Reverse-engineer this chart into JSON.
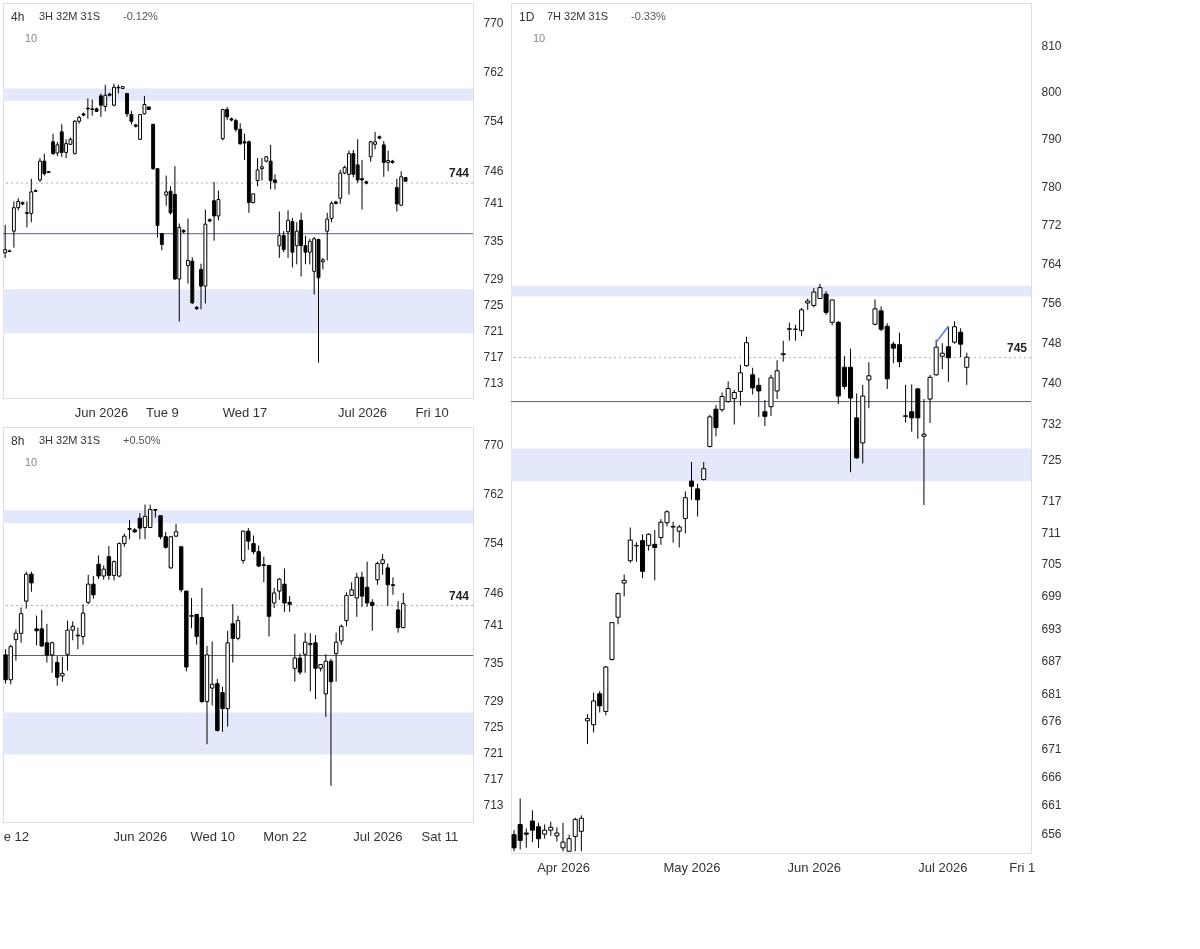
{
  "chart_data": [
    {
      "type": "candlestick",
      "title": "4h",
      "subtitle": "3H 32M 31S",
      "annotations": [
        "-0.12%",
        "10"
      ],
      "log": true,
      "grid": false,
      "categories": [
        null,
        null,
        null,
        null,
        null,
        null,
        null,
        null,
        null,
        null,
        null,
        null,
        null,
        null,
        null,
        null,
        null,
        null,
        null,
        null,
        null,
        null,
        "Jun 2026",
        null,
        null,
        null,
        null,
        null,
        null,
        null,
        null,
        null,
        null,
        null,
        null,
        null,
        "Tue 9",
        null,
        null,
        null,
        null,
        null,
        null,
        null,
        null,
        null,
        null,
        null,
        null,
        null,
        null,
        null,
        null,
        null,
        null,
        "Wed 17",
        null,
        null,
        null,
        null,
        null,
        null,
        null,
        null,
        null,
        null,
        null,
        null,
        null,
        null,
        null,
        null,
        null,
        null,
        null,
        null,
        null,
        null,
        null,
        null,
        null,
        null,
        "Jul 2026",
        null,
        null,
        null,
        null,
        null,
        null,
        null,
        null,
        null,
        null,
        null,
        null,
        null,
        null,
        null,
        "Fri 10",
        null,
        null,
        null,
        null,
        null,
        null,
        null,
        null,
        null
      ],
      "ylim": [
        710.6,
        773.2
      ],
      "yticks": [
        713,
        717,
        721,
        725,
        729,
        735,
        741,
        746,
        754,
        762,
        770
      ],
      "bands": [
        {
          "axis": "y",
          "from": 757.2,
          "to": 759.2,
          "color": "#e3e9fb"
        },
        {
          "axis": "y",
          "from": 720.5,
          "to": 727.3,
          "color": "#e3e9fb"
        }
      ],
      "ref_lines": [
        {
          "axis": "y",
          "value": 744,
          "label": "744",
          "color": "#b0b0b0",
          "line_style": "dotted"
        },
        {
          "axis": "y",
          "value": 736.0,
          "color": "#3d5fc4",
          "line_style": "solid"
        }
      ],
      "ohlc": [
        [
          733.0,
          737.4,
          732.2,
          733.5
        ],
        [
          733.3,
          733.5,
          733.1,
          733.2
        ],
        [
          736.4,
          741.1,
          733.8,
          740.1
        ],
        [
          740.1,
          741.6,
          739.7,
          741.1
        ],
        [
          740.9,
          741.1,
          740.5,
          740.7
        ],
        [
          739.3,
          741.1,
          737.0,
          739.2
        ],
        [
          739.2,
          744.7,
          737.8,
          742.6
        ],
        [
          742.8,
          743.0,
          742.6,
          742.7
        ],
        [
          744.5,
          748.0,
          744.2,
          747.5
        ],
        [
          747.5,
          748.7,
          745.2,
          745.5
        ],
        [
          745.8,
          745.9,
          745.6,
          745.7
        ],
        [
          750.6,
          751.9,
          748.5,
          748.7
        ],
        [
          748.8,
          750.6,
          748.3,
          750.1
        ],
        [
          752.2,
          753.4,
          748.2,
          748.9
        ],
        [
          748.9,
          751.0,
          748.0,
          750.3
        ],
        [
          750.2,
          751.3,
          750.1,
          751.0
        ],
        [
          748.7,
          754.1,
          748.6,
          753.9
        ],
        [
          753.9,
          754.8,
          753.5,
          754.5
        ],
        [
          755.1,
          755.3,
          754.7,
          754.9
        ],
        [
          756.0,
          757.6,
          754.3,
          755.9
        ],
        [
          755.9,
          757.4,
          754.8,
          755.8
        ],
        [
          755.9,
          756.1,
          755.4,
          755.5
        ],
        [
          758.0,
          758.4,
          754.6,
          756.5
        ],
        [
          756.3,
          759.8,
          755.5,
          758.1
        ],
        [
          758.3,
          758.5,
          757.9,
          758.1
        ],
        [
          756.5,
          760.0,
          756.3,
          759.4
        ],
        [
          759.3,
          759.8,
          758.4,
          759.4
        ],
        [
          759.2,
          759.6,
          759.1,
          759.5
        ],
        [
          758.4,
          758.4,
          754.6,
          755.1
        ],
        [
          755.0,
          755.6,
          753.4,
          753.9
        ],
        [
          753.3,
          753.5,
          752.9,
          753.1
        ],
        [
          751.0,
          755.0,
          750.9,
          755.0
        ],
        [
          755.1,
          758.0,
          755.0,
          756.6
        ],
        [
          756.2,
          756.3,
          755.7,
          755.8
        ],
        [
          753.4,
          753.5,
          746.1,
          746.3
        ],
        [
          746.3,
          746.3,
          735.4,
          737.3
        ],
        [
          736.0,
          736.0,
          733.4,
          734.3
        ],
        [
          742.1,
          745.2,
          740.4,
          742.6
        ],
        [
          742.7,
          743.5,
          739.0,
          739.3
        ],
        [
          742.2,
          746.7,
          728.8,
          728.9
        ],
        [
          728.9,
          737.6,
          722.3,
          737.0
        ],
        [
          736.5,
          736.7,
          736.1,
          736.3
        ],
        [
          731.0,
          738.4,
          728.2,
          731.8
        ],
        [
          731.7,
          732.3,
          725.0,
          725.2
        ],
        [
          724.5,
          724.7,
          724.1,
          724.3
        ],
        [
          730.4,
          731.3,
          724.2,
          727.8
        ],
        [
          727.8,
          739.8,
          725.1,
          737.5
        ],
        [
          738.2,
          738.4,
          737.8,
          738.0
        ],
        [
          741.2,
          744.2,
          734.9,
          738.8
        ],
        [
          738.8,
          742.8,
          738.1,
          741.4
        ],
        [
          751.1,
          755.9,
          750.8,
          755.8
        ],
        [
          755.8,
          756.2,
          754.1,
          754.6
        ],
        [
          754.3,
          754.5,
          753.9,
          754.1
        ],
        [
          754.0,
          754.3,
          752.2,
          752.6
        ],
        [
          752.6,
          753.6,
          750.1,
          750.3
        ],
        [
          750.6,
          751.9,
          747.7,
          750.4
        ],
        [
          750.6,
          750.8,
          739.3,
          740.9
        ],
        [
          740.9,
          742.3,
          740.8,
          742.3
        ],
        [
          744.4,
          748.0,
          743.5,
          746.1
        ],
        [
          746.3,
          748.0,
          744.4,
          746.6
        ],
        [
          747.5,
          748.3,
          747.3,
          748.2
        ],
        [
          747.5,
          750.1,
          743.0,
          744.4
        ],
        [
          744.5,
          745.4,
          743.0,
          744.1
        ],
        [
          734.1,
          739.5,
          732.2,
          735.7
        ],
        [
          735.7,
          736.4,
          733.1,
          733.5
        ],
        [
          736.3,
          739.7,
          732.2,
          738.1
        ],
        [
          737.9,
          738.5,
          730.7,
          733.1
        ],
        [
          734.1,
          737.8,
          731.2,
          736.4
        ],
        [
          738.1,
          739.3,
          729.3,
          734.1
        ],
        [
          734.1,
          735.7,
          731.2,
          733.1
        ],
        [
          733.1,
          735.2,
          731.2,
          734.8
        ],
        [
          730.1,
          735.5,
          726.5,
          735.2
        ],
        [
          735.1,
          735.2,
          716.0,
          729.1
        ],
        [
          731.6,
          732.2,
          730.4,
          731.9
        ],
        [
          736.4,
          739.3,
          731.8,
          738.3
        ],
        [
          738.4,
          741.1,
          737.8,
          740.8
        ],
        [
          741.0,
          741.2,
          740.6,
          740.8
        ],
        [
          741.6,
          746.1,
          740.7,
          745.6
        ],
        [
          745.6,
          746.8,
          745.4,
          746.5
        ],
        [
          745.4,
          749.2,
          742.2,
          748.7
        ],
        [
          748.7,
          749.3,
          744.9,
          745.4
        ],
        [
          746.9,
          751.0,
          744.0,
          744.5
        ],
        [
          744.7,
          747.7,
          739.8,
          744.5
        ],
        [
          744.2,
          744.4,
          743.8,
          744.0
        ],
        [
          748.2,
          750.8,
          747.4,
          750.6
        ],
        [
          750.2,
          752.2,
          749.4,
          750.6
        ],
        [
          751.4,
          751.6,
          751.0,
          751.2
        ],
        [
          750.1,
          750.7,
          745.0,
          747.3
        ],
        [
          747.3,
          749.2,
          745.9,
          747.6
        ],
        [
          747.5,
          747.7,
          747.1,
          747.3
        ],
        [
          743.3,
          744.7,
          739.5,
          740.7
        ],
        [
          740.5,
          745.9,
          740.4,
          745.0
        ],
        [
          744.9,
          744.9,
          744.3,
          744.3
        ],
        null,
        null,
        null,
        null,
        null,
        null,
        null,
        null,
        null,
        null,
        null,
        null,
        null,
        null,
        null
      ]
    },
    {
      "type": "candlestick",
      "title": "8h",
      "subtitle": "3H 32M 31S",
      "annotations": [
        "+0.50%",
        "10"
      ],
      "log": true,
      "grid": false,
      "categories": [
        null,
        null,
        "e 12",
        null,
        null,
        null,
        null,
        null,
        null,
        null,
        null,
        null,
        null,
        null,
        null,
        null,
        null,
        null,
        null,
        null,
        null,
        null,
        null,
        null,
        null,
        null,
        "Jun 2026",
        null,
        null,
        null,
        null,
        null,
        null,
        null,
        null,
        null,
        null,
        null,
        null,
        null,
        "Wed 10",
        null,
        null,
        null,
        null,
        null,
        null,
        null,
        null,
        null,
        null,
        null,
        null,
        null,
        "Mon 22",
        null,
        null,
        null,
        null,
        null,
        null,
        null,
        null,
        null,
        null,
        null,
        null,
        null,
        null,
        null,
        null,
        null,
        "Jul 2026",
        null,
        null,
        null,
        null,
        null,
        null,
        null,
        null,
        null,
        null,
        null,
        "Sat 11",
        null,
        null,
        null,
        null,
        null,
        null
      ],
      "ylim": [
        710.4,
        772.9
      ],
      "yticks": [
        713,
        717,
        721,
        725,
        729,
        735,
        741,
        746,
        754,
        762,
        770
      ],
      "bands": [
        {
          "axis": "y",
          "from": 757.2,
          "to": 759.3,
          "color": "#e3e9fb"
        },
        {
          "axis": "y",
          "from": 720.7,
          "to": 727.2,
          "color": "#e3e9fb"
        }
      ],
      "ref_lines": [
        {
          "axis": "y",
          "value": 744,
          "label": "744",
          "color": "#b0b0b0",
          "line_style": "dotted"
        },
        {
          "axis": "y",
          "value": 736.1,
          "color": "#3d5fc4",
          "line_style": "solid"
        }
      ],
      "ohlc": [
        [
          736.2,
          737.1,
          731.7,
          732.3
        ],
        [
          732.3,
          737.8,
          731.6,
          737.5
        ],
        [
          738.6,
          740.2,
          735.3,
          739.6
        ],
        [
          739.6,
          743.7,
          738.1,
          742.7
        ],
        [
          744.7,
          749.4,
          743.5,
          749.0
        ],
        [
          749.0,
          749.4,
          746.2,
          747.6
        ],
        [
          740.3,
          742.4,
          737.7,
          740.0
        ],
        [
          740.3,
          743.3,
          737.5,
          737.6
        ],
        [
          738.1,
          741.1,
          735.0,
          736.2
        ],
        [
          736.2,
          738.3,
          733.4,
          738.1
        ],
        [
          735.0,
          736.0,
          731.4,
          732.7
        ],
        [
          732.9,
          735.9,
          732.0,
          733.3
        ],
        [
          736.3,
          741.6,
          733.7,
          740.1
        ],
        [
          740.1,
          741.5,
          738.5,
          740.7
        ],
        [
          739.3,
          740.5,
          737.1,
          739.2
        ],
        [
          739.1,
          744.2,
          737.8,
          742.8
        ],
        [
          744.5,
          748.9,
          744.2,
          747.4
        ],
        [
          747.4,
          748.7,
          745.1,
          745.7
        ],
        [
          750.6,
          752.0,
          748.2,
          748.7
        ],
        [
          748.7,
          750.4,
          748.1,
          749.8
        ],
        [
          751.8,
          753.5,
          748.1,
          748.8
        ],
        [
          748.8,
          751.2,
          748.0,
          751.0
        ],
        [
          748.7,
          754.1,
          748.5,
          753.9
        ],
        [
          753.9,
          755.5,
          753.4,
          755.1
        ],
        [
          756.3,
          757.7,
          754.6,
          756.2
        ],
        [
          756.1,
          756.4,
          755.6,
          755.8
        ],
        [
          758.0,
          758.8,
          754.6,
          756.4
        ],
        [
          756.5,
          760.2,
          754.6,
          758.3
        ],
        [
          756.5,
          760.2,
          756.4,
          759.4
        ],
        [
          759.4,
          759.5,
          758.1,
          759.3
        ],
        [
          758.4,
          758.4,
          754.6,
          755.0
        ],
        [
          755.0,
          755.8,
          753.1,
          753.3
        ],
        [
          750.0,
          755.1,
          749.9,
          755.0
        ],
        [
          755.1,
          757.1,
          755.0,
          755.8
        ],
        [
          753.4,
          753.4,
          746.1,
          746.5
        ],
        [
          746.3,
          746.3,
          733.6,
          734.3
        ],
        [
          742.4,
          745.2,
          740.4,
          742.3
        ],
        [
          742.6,
          742.6,
          737.8,
          739.1
        ],
        [
          742.1,
          746.8,
          728.7,
          728.9
        ],
        [
          728.9,
          737.6,
          722.3,
          736.2
        ],
        [
          731.0,
          738.3,
          728.3,
          731.6
        ],
        [
          731.7,
          732.4,
          724.3,
          724.4
        ],
        [
          730.3,
          731.2,
          724.2,
          727.8
        ],
        [
          727.8,
          740.0,
          725.0,
          738.1
        ],
        [
          741.1,
          744.2,
          735.0,
          738.8
        ],
        [
          738.8,
          742.4,
          738.5,
          741.6
        ],
        [
          751.2,
          756.0,
          750.7,
          755.9
        ],
        [
          755.9,
          756.4,
          752.9,
          754.3
        ],
        [
          753.9,
          755.2,
          752.2,
          752.6
        ],
        [
          752.6,
          753.6,
          750.1,
          750.3
        ],
        [
          750.5,
          751.8,
          747.7,
          750.4
        ],
        [
          750.4,
          750.4,
          739.1,
          742.3
        ],
        [
          744.4,
          746.8,
          743.6,
          746.0
        ],
        [
          746.3,
          748.4,
          744.9,
          748.2
        ],
        [
          747.4,
          749.9,
          743.0,
          744.4
        ],
        [
          744.5,
          745.5,
          743.0,
          744.2
        ],
        [
          734.1,
          739.5,
          732.0,
          735.7
        ],
        [
          735.7,
          736.4,
          733.1,
          733.5
        ],
        [
          736.3,
          739.7,
          733.4,
          738.2
        ],
        [
          737.8,
          739.6,
          730.5,
          738.0
        ],
        [
          738.1,
          739.3,
          729.3,
          734.1
        ],
        [
          734.1,
          734.7,
          733.6,
          734.7
        ],
        [
          730.1,
          736.3,
          726.5,
          735.2
        ],
        [
          735.2,
          735.6,
          715.9,
          732.0
        ],
        [
          736.4,
          739.7,
          732.0,
          738.2
        ],
        [
          738.4,
          741.0,
          737.8,
          740.7
        ],
        [
          741.6,
          746.1,
          740.7,
          745.6
        ],
        [
          745.6,
          747.7,
          745.6,
          746.5
        ],
        [
          745.2,
          749.2,
          742.2,
          748.5
        ],
        [
          748.5,
          749.4,
          743.8,
          745.5
        ],
        [
          746.9,
          751.0,
          743.8,
          744.4
        ],
        [
          744.5,
          745.0,
          740.0,
          744.0
        ],
        [
          748.1,
          751.0,
          747.3,
          750.7
        ],
        [
          750.7,
          752.2,
          748.9,
          751.3
        ],
        [
          750.0,
          750.7,
          743.9,
          747.3
        ],
        [
          747.3,
          748.5,
          745.7,
          747.2
        ],
        [
          743.3,
          744.7,
          739.7,
          740.5
        ],
        [
          740.5,
          746.0,
          740.4,
          744.3
        ],
        null,
        null,
        null,
        null,
        null,
        null,
        null,
        null,
        null,
        null,
        null,
        null,
        null
      ]
    },
    {
      "type": "candlestick",
      "title": "1D",
      "subtitle": "7H 32M 31S",
      "annotations": [
        "-0.33%",
        "10"
      ],
      "log": true,
      "grid": false,
      "categories": [
        null,
        null,
        null,
        null,
        null,
        null,
        null,
        null,
        "Apr 2026",
        null,
        null,
        null,
        null,
        null,
        null,
        null,
        null,
        null,
        null,
        null,
        null,
        null,
        null,
        null,
        null,
        null,
        null,
        null,
        null,
        "May 2026",
        null,
        null,
        null,
        null,
        null,
        null,
        null,
        null,
        null,
        null,
        null,
        null,
        null,
        null,
        null,
        null,
        null,
        null,
        null,
        "Jun 2026",
        null,
        null,
        null,
        null,
        null,
        null,
        null,
        null,
        null,
        null,
        null,
        null,
        null,
        null,
        null,
        null,
        null,
        null,
        null,
        null,
        "Jul 2026",
        null,
        null,
        null,
        null,
        null,
        null,
        null,
        null,
        null,
        null,
        null,
        null,
        "Fri 1",
        null
      ],
      "ylim": [
        652.5,
        819.2
      ],
      "yticks": [
        656,
        661,
        666,
        671,
        676,
        681,
        687,
        693,
        699,
        705,
        711,
        717,
        725,
        732,
        740,
        748,
        756,
        764,
        772,
        780,
        790,
        800,
        810
      ],
      "bands": [
        {
          "axis": "y",
          "from": 757.3,
          "to": 759.5,
          "color": "#e3e9fb"
        },
        {
          "axis": "y",
          "from": 720.8,
          "to": 727.1,
          "color": "#e3e9fb"
        }
      ],
      "ref_lines": [
        {
          "axis": "y",
          "value": 745,
          "label": "745",
          "color": "#b0b0b0",
          "line_style": "dotted"
        },
        {
          "axis": "y",
          "value": 736.3,
          "color": "#3d5fc4",
          "line_style": "solid"
        }
      ],
      "series": [
        {
          "type": "line",
          "color": "#5b7fe0",
          "values": [
            null,
            null,
            null,
            null,
            null,
            null,
            null,
            null,
            null,
            null,
            null,
            null,
            null,
            null,
            null,
            null,
            null,
            null,
            null,
            null,
            null,
            null,
            null,
            null,
            null,
            null,
            null,
            null,
            null,
            null,
            null,
            null,
            null,
            null,
            null,
            null,
            null,
            null,
            null,
            null,
            null,
            null,
            null,
            null,
            null,
            null,
            null,
            null,
            null,
            null,
            null,
            null,
            null,
            null,
            null,
            null,
            null,
            null,
            null,
            null,
            null,
            null,
            null,
            null,
            null,
            null,
            null,
            null,
            null,
            748.1,
            749.7,
            751.3,
            null,
            null,
            null,
            null,
            null,
            null,
            null,
            null,
            null,
            null,
            null,
            null,
            null
          ]
        }
      ],
      "ohlc": [
        [
          655.7,
          656.5,
          652.8,
          653.4
        ],
        [
          657.5,
          662.1,
          653.1,
          654.7
        ],
        [
          656.0,
          656.8,
          653.4,
          655.8
        ],
        [
          658.1,
          660.0,
          654.4,
          656.5
        ],
        [
          657.1,
          657.8,
          653.4,
          655.0
        ],
        [
          655.8,
          657.5,
          655.0,
          656.5
        ],
        [
          656.5,
          658.0,
          655.5,
          657.0
        ],
        [
          655.5,
          657.0,
          654.5,
          656.0
        ],
        [
          653.4,
          657.8,
          652.8,
          654.4
        ],
        [
          652.8,
          655.7,
          652.8,
          655.0
        ],
        [
          655.4,
          658.7,
          652.8,
          658.4
        ],
        [
          656.3,
          659.1,
          652.8,
          658.6
        ],
        [
          676.0,
          677.2,
          671.8,
          676.4
        ],
        [
          675.3,
          681.1,
          673.9,
          679.6
        ],
        [
          680.9,
          681.4,
          677.5,
          678.7
        ],
        [
          677.7,
          686.0,
          677.0,
          685.8
        ],
        [
          687.2,
          694.0,
          687.0,
          694.0
        ],
        [
          695.0,
          699.6,
          693.7,
          699.4
        ],
        [
          701.4,
          703.0,
          698.9,
          701.9
        ],
        [
          705.6,
          711.9,
          705.2,
          709.5
        ],
        [
          708.4,
          709.1,
          705.4,
          708.5
        ],
        [
          709.4,
          710.6,
          702.3,
          703.6
        ],
        [
          708.5,
          710.8,
          707.5,
          710.6
        ],
        [
          708.7,
          711.4,
          701.9,
          708.1
        ],
        [
          710.0,
          713.5,
          708.6,
          712.9
        ],
        [
          712.8,
          715.2,
          712.1,
          714.9
        ],
        [
          712.1,
          713.0,
          709.0,
          712.0
        ],
        [
          711.2,
          712.4,
          708.1,
          712.0
        ],
        [
          713.6,
          718.8,
          710.8,
          717.6
        ],
        [
          720.8,
          724.5,
          717.2,
          719.8
        ],
        [
          719.3,
          720.3,
          714.0,
          717.2
        ],
        [
          721.1,
          724.5,
          720.9,
          723.2
        ],
        [
          727.5,
          733.7,
          727.3,
          733.3
        ],
        [
          734.8,
          735.6,
          729.5,
          731.2
        ],
        [
          734.7,
          738.1,
          734.3,
          737.3
        ],
        [
          736.3,
          740.3,
          736.1,
          738.9
        ],
        [
          736.9,
          738.6,
          731.8,
          738.1
        ],
        [
          738.3,
          743.6,
          735.5,
          742.0
        ],
        [
          743.4,
          749.2,
          743.2,
          748.0
        ],
        [
          741.6,
          743.0,
          737.7,
          739.0
        ],
        [
          739.5,
          741.0,
          733.3,
          738.4
        ],
        [
          734.3,
          736.6,
          731.5,
          733.4
        ],
        [
          735.3,
          741.6,
          733.5,
          741.0
        ],
        [
          738.4,
          744.5,
          736.8,
          742.4
        ],
        [
          745.6,
          748.4,
          744.2,
          745.8
        ],
        [
          750.7,
          752.0,
          748.4,
          750.8
        ],
        [
          750.7,
          751.6,
          748.4,
          750.7
        ],
        [
          750.4,
          755.0,
          749.3,
          754.6
        ],
        [
          756.0,
          756.9,
          754.6,
          756.4
        ],
        [
          755.5,
          759.0,
          755.1,
          758.2
        ],
        [
          756.9,
          759.9,
          756.8,
          759.1
        ],
        [
          757.8,
          758.4,
          753.6,
          754.1
        ],
        [
          752.1,
          756.7,
          751.5,
          756.6
        ],
        [
          752.1,
          752.3,
          735.8,
          737.4
        ],
        [
          743.1,
          745.3,
          738.7,
          739.3
        ],
        [
          743.1,
          746.8,
          722.5,
          737.0
        ],
        [
          733.1,
          737.9,
          725.1,
          725.3
        ],
        [
          728.2,
          739.6,
          724.2,
          737.4
        ],
        [
          740.6,
          744.1,
          735.0,
          741.4
        ],
        [
          751.7,
          756.7,
          751.5,
          754.8
        ],
        [
          754.4,
          755.3,
          750.3,
          750.7
        ],
        [
          751.3,
          751.9,
          738.8,
          740.8
        ],
        [
          747.7,
          748.2,
          743.9,
          746.9
        ],
        [
          747.6,
          750.0,
          743.1,
          744.2
        ],
        [
          733.5,
          739.6,
          732.2,
          733.4
        ],
        [
          734.3,
          739.7,
          730.4,
          733.1
        ],
        [
          738.8,
          739.0,
          729.0,
          733.1
        ],
        [
          729.5,
          736.8,
          716.2,
          729.9
        ],
        [
          736.8,
          741.6,
          732.1,
          741.1
        ],
        [
          741.6,
          748.6,
          741.4,
          747.1
        ],
        [
          745.3,
          747.9,
          742.7,
          745.9
        ],
        [
          747.2,
          751.2,
          740.2,
          745.0
        ],
        [
          748.1,
          752.3,
          747.8,
          751.2
        ],
        [
          750.1,
          750.9,
          745.1,
          747.7
        ],
        [
          743.1,
          746.0,
          739.6,
          745.1
        ],
        null,
        null,
        null,
        null,
        null,
        null,
        null,
        null,
        null,
        null
      ]
    }
  ]
}
